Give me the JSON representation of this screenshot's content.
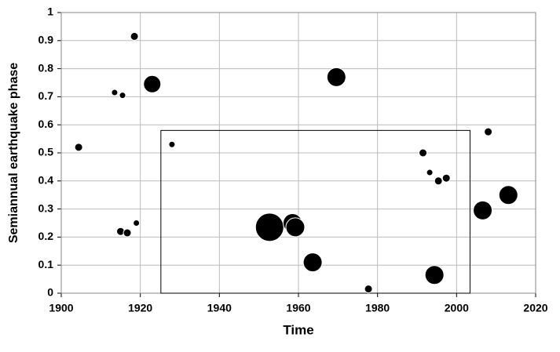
{
  "chart_data": {
    "type": "scatter",
    "x_label": "Time",
    "y_label": "Semiannual earthquake phase",
    "x": [
      1904.4,
      1918.5,
      1923,
      1913.5,
      1915.5,
      1915,
      1916.7,
      1919,
      1928,
      1969.6,
      1952.7,
      1958.5,
      1959.2,
      1963.6,
      1977.7,
      1991.5,
      1993.2,
      1995.4,
      1997.4,
      1994.4,
      2008,
      2006.6,
      2013.1
    ],
    "y": [
      0.52,
      0.915,
      0.745,
      0.715,
      0.705,
      0.22,
      0.215,
      0.25,
      0.53,
      0.77,
      0.235,
      0.25,
      0.235,
      0.11,
      0.015,
      0.5,
      0.43,
      0.4,
      0.41,
      0.065,
      0.575,
      0.295,
      0.35
    ],
    "sizes": [
      5,
      5,
      11,
      4,
      4,
      5,
      5,
      4,
      4,
      12,
      18,
      12,
      12,
      12,
      5,
      5,
      4,
      5,
      5,
      12,
      5,
      12,
      12
    ],
    "color": "#000000",
    "xlim": [
      1900,
      2020
    ],
    "xticks": [
      1900,
      1920,
      1940,
      1960,
      1980,
      2000,
      2020
    ],
    "ylim": [
      0,
      1
    ],
    "yticks": [
      0,
      0.1,
      0.2,
      0.3,
      0.4,
      0.5,
      0.6,
      0.7,
      0.8,
      0.9,
      1
    ],
    "grid": true,
    "highlight_box": {
      "xlim": [
        1925.2,
        2003.4
      ],
      "ylim": [
        0,
        0.58
      ]
    }
  }
}
